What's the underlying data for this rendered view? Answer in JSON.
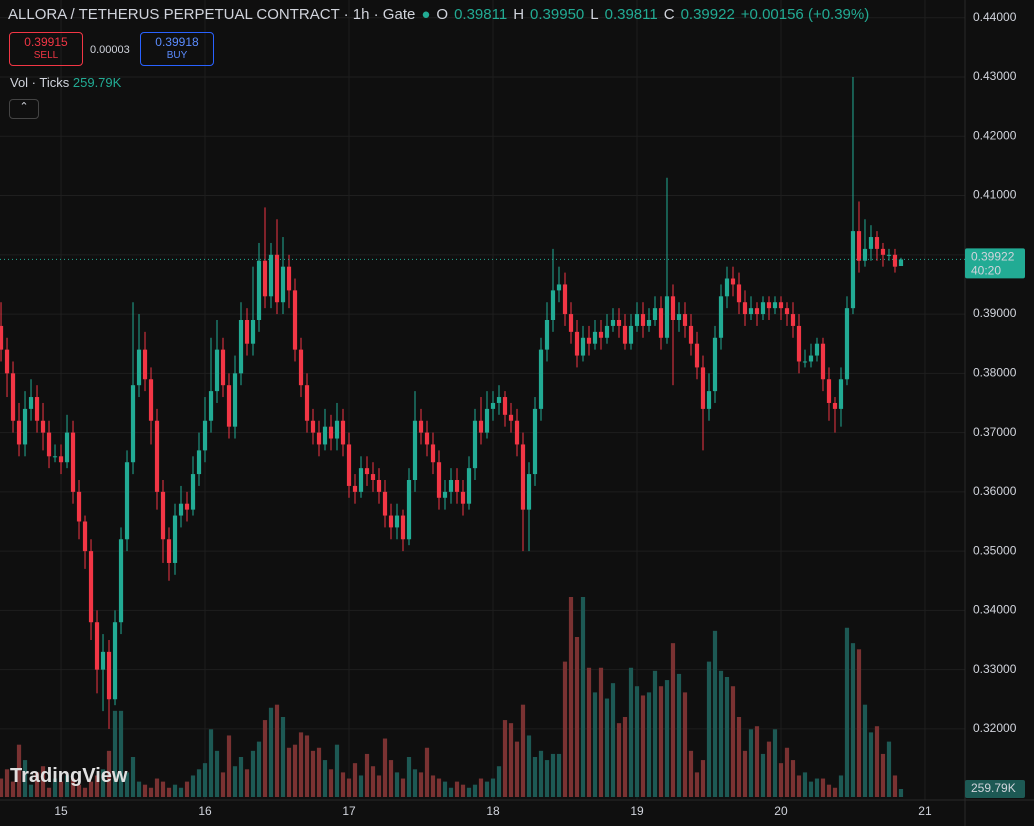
{
  "header": {
    "symbol": "ALLORA / TETHERUS PERPETUAL CONTRACT · 1h · Gate",
    "o_label": "O",
    "o": "0.39811",
    "h_label": "H",
    "h": "0.39950",
    "l_label": "L",
    "l": "0.39811",
    "c_label": "C",
    "c": "0.39922",
    "change": "+0.00156 (+0.39%)"
  },
  "trade": {
    "sell_price": "0.39915",
    "sell": "SELL",
    "spread": "0.00003",
    "buy_price": "0.39918",
    "buy": "BUY"
  },
  "indicator": {
    "name": "Vol · Ticks"
  },
  "countdown": "40:20",
  "brand": "TradingView",
  "chart_data": {
    "type": "candlestick",
    "title": "ALLORA / TETHERUS PERPETUAL CONTRACT · 1h · Gate",
    "x": [
      -10,
      -9,
      -8,
      -7,
      -6,
      -5,
      -4,
      -3,
      -2,
      -1,
      0,
      1,
      2,
      3,
      4,
      5,
      6,
      7,
      8,
      9,
      10,
      11,
      12,
      13,
      14,
      15,
      16,
      17,
      18,
      19,
      20,
      21,
      22,
      23,
      24,
      25,
      26,
      27,
      28,
      29,
      30,
      31,
      32,
      33,
      34,
      35,
      36,
      37,
      38,
      39,
      40,
      41,
      42,
      43,
      44,
      45,
      46,
      47,
      48,
      49,
      50,
      51,
      52,
      53,
      54,
      55,
      56,
      57,
      58,
      59,
      60,
      61,
      62,
      63,
      64,
      65,
      66,
      67,
      68,
      69,
      70,
      71,
      72,
      73,
      74,
      75,
      76,
      77,
      78,
      79,
      80,
      81,
      82,
      83,
      84,
      85,
      86,
      87,
      88,
      89,
      90,
      91,
      92,
      93,
      94,
      95,
      96,
      97,
      98,
      99,
      100,
      101,
      102,
      103,
      104,
      105,
      106,
      107,
      108,
      109,
      110,
      111,
      112,
      113,
      114,
      115,
      116,
      117,
      118,
      119,
      120,
      121,
      122,
      123,
      124,
      125,
      126,
      127,
      128,
      129,
      130,
      131,
      132,
      133,
      134,
      135,
      136,
      137,
      138,
      139,
      140
    ],
    "open": [
      0.388,
      0.384,
      0.38,
      0.372,
      0.368,
      0.374,
      0.376,
      0.372,
      0.37,
      0.366,
      0.366,
      0.365,
      0.37,
      0.36,
      0.355,
      0.35,
      0.338,
      0.33,
      0.333,
      0.325,
      0.338,
      0.352,
      0.365,
      0.378,
      0.384,
      0.379,
      0.372,
      0.36,
      0.352,
      0.348,
      0.356,
      0.358,
      0.357,
      0.363,
      0.367,
      0.372,
      0.377,
      0.384,
      0.378,
      0.371,
      0.38,
      0.389,
      0.385,
      0.389,
      0.399,
      0.393,
      0.4,
      0.392,
      0.398,
      0.394,
      0.384,
      0.378,
      0.372,
      0.37,
      0.368,
      0.371,
      0.369,
      0.372,
      0.368,
      0.361,
      0.36,
      0.364,
      0.363,
      0.362,
      0.36,
      0.356,
      0.354,
      0.356,
      0.352,
      0.362,
      0.372,
      0.37,
      0.368,
      0.365,
      0.359,
      0.36,
      0.362,
      0.36,
      0.358,
      0.364,
      0.372,
      0.37,
      0.374,
      0.375,
      0.376,
      0.373,
      0.372,
      0.368,
      0.357,
      0.363,
      0.374,
      0.384,
      0.389,
      0.394,
      0.395,
      0.39,
      0.387,
      0.383,
      0.386,
      0.385,
      0.387,
      0.386,
      0.388,
      0.389,
      0.388,
      0.385,
      0.388,
      0.39,
      0.388,
      0.389,
      0.391,
      0.386,
      0.393,
      0.389,
      0.39,
      0.388,
      0.385,
      0.381,
      0.374,
      0.377,
      0.386,
      0.393,
      0.396,
      0.395,
      0.392,
      0.39,
      0.391,
      0.39,
      0.392,
      0.391,
      0.392,
      0.391,
      0.39,
      0.388,
      0.382,
      0.382,
      0.383,
      0.385,
      0.379,
      0.375,
      0.374,
      0.379,
      0.391,
      0.404,
      0.399,
      0.401,
      0.403,
      0.401,
      0.4,
      0.4,
      0.39811
    ],
    "high": [
      0.392,
      0.386,
      0.382,
      0.375,
      0.377,
      0.379,
      0.378,
      0.375,
      0.372,
      0.368,
      0.368,
      0.373,
      0.372,
      0.362,
      0.356,
      0.352,
      0.34,
      0.336,
      0.335,
      0.34,
      0.354,
      0.367,
      0.392,
      0.39,
      0.387,
      0.381,
      0.374,
      0.362,
      0.354,
      0.358,
      0.361,
      0.36,
      0.366,
      0.37,
      0.376,
      0.386,
      0.389,
      0.386,
      0.38,
      0.383,
      0.392,
      0.391,
      0.398,
      0.402,
      0.408,
      0.402,
      0.406,
      0.403,
      0.4,
      0.396,
      0.386,
      0.38,
      0.374,
      0.372,
      0.374,
      0.373,
      0.375,
      0.374,
      0.37,
      0.363,
      0.366,
      0.366,
      0.365,
      0.364,
      0.362,
      0.358,
      0.358,
      0.357,
      0.364,
      0.377,
      0.374,
      0.372,
      0.37,
      0.367,
      0.362,
      0.364,
      0.364,
      0.362,
      0.366,
      0.374,
      0.376,
      0.377,
      0.377,
      0.378,
      0.377,
      0.375,
      0.374,
      0.37,
      0.365,
      0.376,
      0.386,
      0.392,
      0.401,
      0.398,
      0.397,
      0.392,
      0.389,
      0.388,
      0.388,
      0.389,
      0.389,
      0.39,
      0.391,
      0.391,
      0.39,
      0.39,
      0.392,
      0.392,
      0.391,
      0.393,
      0.393,
      0.413,
      0.395,
      0.392,
      0.392,
      0.39,
      0.387,
      0.383,
      0.38,
      0.388,
      0.395,
      0.398,
      0.398,
      0.397,
      0.394,
      0.393,
      0.392,
      0.393,
      0.393,
      0.393,
      0.393,
      0.392,
      0.392,
      0.39,
      0.384,
      0.385,
      0.386,
      0.386,
      0.381,
      0.376,
      0.381,
      0.393,
      0.43,
      0.409,
      0.406,
      0.405,
      0.404,
      0.402,
      0.401,
      0.401,
      0.3995
    ],
    "low": [
      0.382,
      0.376,
      0.37,
      0.366,
      0.366,
      0.372,
      0.37,
      0.367,
      0.364,
      0.365,
      0.363,
      0.364,
      0.358,
      0.352,
      0.347,
      0.335,
      0.326,
      0.323,
      0.32,
      0.324,
      0.336,
      0.35,
      0.363,
      0.376,
      0.377,
      0.368,
      0.357,
      0.348,
      0.345,
      0.346,
      0.354,
      0.355,
      0.356,
      0.361,
      0.365,
      0.37,
      0.375,
      0.376,
      0.369,
      0.369,
      0.378,
      0.383,
      0.383,
      0.387,
      0.391,
      0.391,
      0.39,
      0.39,
      0.391,
      0.382,
      0.376,
      0.37,
      0.368,
      0.366,
      0.367,
      0.367,
      0.367,
      0.366,
      0.359,
      0.358,
      0.359,
      0.361,
      0.36,
      0.358,
      0.354,
      0.352,
      0.352,
      0.35,
      0.351,
      0.36,
      0.368,
      0.366,
      0.363,
      0.357,
      0.357,
      0.358,
      0.358,
      0.356,
      0.357,
      0.362,
      0.368,
      0.369,
      0.372,
      0.373,
      0.371,
      0.37,
      0.366,
      0.35,
      0.35,
      0.361,
      0.372,
      0.382,
      0.387,
      0.392,
      0.388,
      0.385,
      0.381,
      0.382,
      0.383,
      0.384,
      0.384,
      0.385,
      0.387,
      0.386,
      0.384,
      0.384,
      0.387,
      0.386,
      0.387,
      0.388,
      0.384,
      0.385,
      0.378,
      0.387,
      0.386,
      0.383,
      0.379,
      0.367,
      0.372,
      0.375,
      0.384,
      0.391,
      0.393,
      0.39,
      0.388,
      0.389,
      0.388,
      0.389,
      0.389,
      0.39,
      0.389,
      0.388,
      0.386,
      0.38,
      0.381,
      0.381,
      0.382,
      0.377,
      0.372,
      0.37,
      0.371,
      0.378,
      0.39,
      0.397,
      0.398,
      0.399,
      0.399,
      0.398,
      0.399,
      0.397,
      0.39811
    ],
    "close": [
      0.384,
      0.38,
      0.372,
      0.368,
      0.374,
      0.376,
      0.372,
      0.37,
      0.366,
      0.366,
      0.365,
      0.37,
      0.36,
      0.355,
      0.35,
      0.338,
      0.33,
      0.333,
      0.325,
      0.338,
      0.352,
      0.365,
      0.378,
      0.384,
      0.379,
      0.372,
      0.36,
      0.352,
      0.348,
      0.356,
      0.358,
      0.357,
      0.363,
      0.367,
      0.372,
      0.377,
      0.384,
      0.378,
      0.371,
      0.38,
      0.389,
      0.385,
      0.389,
      0.399,
      0.393,
      0.4,
      0.392,
      0.398,
      0.394,
      0.384,
      0.378,
      0.372,
      0.37,
      0.368,
      0.371,
      0.369,
      0.372,
      0.368,
      0.361,
      0.36,
      0.364,
      0.363,
      0.362,
      0.36,
      0.356,
      0.354,
      0.356,
      0.352,
      0.362,
      0.372,
      0.37,
      0.368,
      0.365,
      0.359,
      0.36,
      0.362,
      0.36,
      0.358,
      0.364,
      0.372,
      0.37,
      0.374,
      0.375,
      0.376,
      0.373,
      0.372,
      0.368,
      0.357,
      0.363,
      0.374,
      0.384,
      0.389,
      0.394,
      0.395,
      0.39,
      0.387,
      0.383,
      0.386,
      0.385,
      0.387,
      0.386,
      0.388,
      0.389,
      0.388,
      0.385,
      0.388,
      0.39,
      0.388,
      0.389,
      0.391,
      0.386,
      0.393,
      0.389,
      0.39,
      0.388,
      0.385,
      0.381,
      0.374,
      0.377,
      0.386,
      0.393,
      0.396,
      0.395,
      0.392,
      0.39,
      0.391,
      0.39,
      0.392,
      0.391,
      0.392,
      0.391,
      0.39,
      0.388,
      0.382,
      0.382,
      0.383,
      0.385,
      0.379,
      0.375,
      0.374,
      0.379,
      0.391,
      0.404,
      0.399,
      0.401,
      0.403,
      0.401,
      0.4,
      0.4,
      0.398,
      0.39922
    ],
    "volume": [
      600,
      900,
      500,
      1700,
      1200,
      400,
      800,
      1000,
      300,
      600,
      500,
      700,
      600,
      400,
      300,
      500,
      700,
      900,
      1500,
      2800,
      2800,
      800,
      1300,
      500,
      400,
      300,
      600,
      500,
      300,
      400,
      300,
      500,
      700,
      900,
      1100,
      2200,
      1500,
      800,
      2000,
      1000,
      1300,
      900,
      1500,
      1800,
      2500,
      2900,
      3000,
      2600,
      1600,
      1700,
      2100,
      2000,
      1500,
      1600,
      1200,
      900,
      1700,
      800,
      600,
      1100,
      700,
      1400,
      1000,
      700,
      1900,
      1200,
      800,
      600,
      1300,
      900,
      800,
      1600,
      700,
      600,
      500,
      300,
      500,
      400,
      300,
      400,
      600,
      500,
      600,
      1000,
      2500,
      2400,
      1800,
      3000,
      2000,
      1300,
      1500,
      1200,
      1400,
      1400,
      4400,
      6500,
      5200,
      6500,
      4200,
      3400,
      4200,
      3200,
      3700,
      2400,
      2600,
      4200,
      3600,
      3300,
      3400,
      4100,
      3600,
      3800,
      5000,
      4000,
      3400,
      1500,
      800,
      1200,
      4400,
      5400,
      4100,
      3900,
      3600,
      2600,
      1500,
      2200,
      2300,
      1400,
      1800,
      2200,
      1100,
      1600,
      1200,
      700,
      800,
      500,
      600,
      600,
      400,
      300,
      700,
      5500,
      5000,
      4800,
      3000,
      2100,
      2300,
      1400,
      1800,
      700,
      259.79
    ],
    "volume_label": "259.79K",
    "vlim": [
      0,
      26000
    ],
    "xlim": [
      -10.17,
      150.67
    ],
    "xticks": [
      {
        "value": 0,
        "label": "15"
      },
      {
        "value": 24,
        "label": "16"
      },
      {
        "value": 48,
        "label": "17"
      },
      {
        "value": 72,
        "label": "18"
      },
      {
        "value": 96,
        "label": "19"
      },
      {
        "value": 120,
        "label": "20"
      },
      {
        "value": 144,
        "label": "21"
      }
    ],
    "ylim": [
      0.308,
      0.443
    ],
    "yticks": [
      {
        "value": 0.32,
        "label": "0.32000"
      },
      {
        "value": 0.33,
        "label": "0.33000"
      },
      {
        "value": 0.34,
        "label": "0.34000"
      },
      {
        "value": 0.35,
        "label": "0.35000"
      },
      {
        "value": 0.36,
        "label": "0.36000"
      },
      {
        "value": 0.37,
        "label": "0.37000"
      },
      {
        "value": 0.38,
        "label": "0.38000"
      },
      {
        "value": 0.39,
        "label": "0.39000"
      },
      {
        "value": 0.4,
        "label": "0.40000"
      },
      {
        "value": 0.41,
        "label": "0.41000"
      },
      {
        "value": 0.42,
        "label": "0.42000"
      },
      {
        "value": 0.43,
        "label": "0.43000"
      },
      {
        "value": 0.44,
        "label": "0.44000"
      }
    ],
    "grid": true,
    "up_color": "#22ab94",
    "down_color": "#f23645",
    "volume_up_color": "#1d5954",
    "volume_down_color": "#7a3232"
  }
}
